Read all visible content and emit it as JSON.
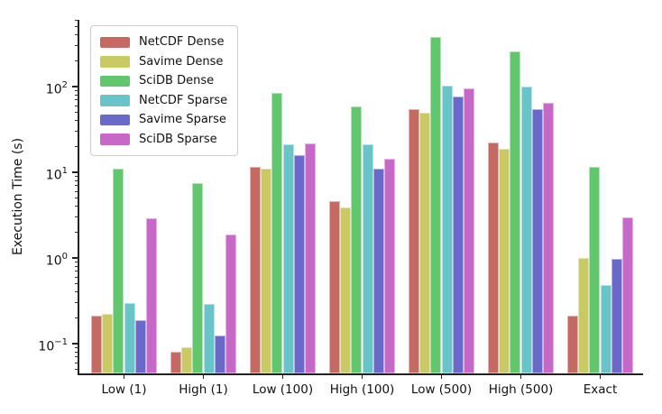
{
  "chart_data": {
    "type": "bar",
    "title": "",
    "xlabel": "",
    "ylabel": "Execution Time (s)",
    "y_scale": "log",
    "grid": false,
    "legend_position": "upper left",
    "categories": [
      "Low (1)",
      "High (1)",
      "Low (100)",
      "High (100)",
      "Low (500)",
      "High (500)",
      "Exact"
    ],
    "series": [
      {
        "name": "NetCDF Dense",
        "color": "#c56a62",
        "values": [
          0.21,
          0.08,
          11.5,
          4.6,
          55,
          22,
          0.21
        ]
      },
      {
        "name": "Savime Dense",
        "color": "#c9c966",
        "values": [
          0.22,
          0.09,
          11.0,
          3.9,
          50,
          19,
          1.0
        ]
      },
      {
        "name": "SciDB Dense",
        "color": "#62c76c",
        "values": [
          11.0,
          7.5,
          85.0,
          58.0,
          380,
          260,
          11.5
        ]
      },
      {
        "name": "NetCDF Sparse",
        "color": "#68c4c8",
        "values": [
          0.3,
          0.29,
          21.0,
          21.0,
          102,
          101,
          0.48
        ]
      },
      {
        "name": "Savime Sparse",
        "color": "#6a68c8",
        "values": [
          0.19,
          0.125,
          16.0,
          11.0,
          77,
          54,
          0.97
        ]
      },
      {
        "name": "SciDB Sparse",
        "color": "#c768c8",
        "values": [
          2.9,
          1.9,
          21.5,
          14.5,
          95,
          64,
          3.0
        ]
      }
    ],
    "y_axis": {
      "base": "10",
      "major": [
        {
          "exp": -1,
          "sup": "−1"
        },
        {
          "exp": 0,
          "sup": "0"
        },
        {
          "exp": 1,
          "sup": "1"
        },
        {
          "exp": 2,
          "sup": "2"
        }
      ],
      "min_value": 0.045,
      "max_value": 615
    }
  }
}
